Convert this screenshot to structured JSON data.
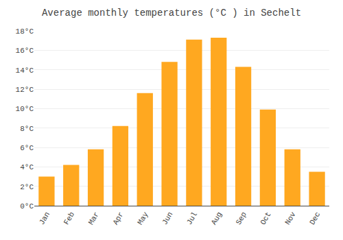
{
  "chart_data": {
    "type": "bar",
    "title": "Average monthly temperatures (°C ) in Sechelt",
    "categories": [
      "Jan",
      "Feb",
      "Mar",
      "Apr",
      "May",
      "Jun",
      "Jul",
      "Aug",
      "Sep",
      "Oct",
      "Nov",
      "Dec"
    ],
    "values": [
      3.0,
      4.2,
      5.8,
      8.2,
      11.6,
      14.8,
      17.1,
      17.3,
      14.3,
      9.9,
      5.8,
      3.5
    ],
    "color": "#FFA820",
    "ylim": [
      0,
      18
    ],
    "yticks": [
      {
        "value": 0,
        "label": "0°C"
      },
      {
        "value": 2,
        "label": "2°C"
      },
      {
        "value": 4,
        "label": "4°C"
      },
      {
        "value": 6,
        "label": "6°C"
      },
      {
        "value": 8,
        "label": "8°C"
      },
      {
        "value": 10,
        "label": "10°C"
      },
      {
        "value": 12,
        "label": "12°C"
      },
      {
        "value": 14,
        "label": "14°C"
      },
      {
        "value": 16,
        "label": "16°C"
      },
      {
        "value": 18,
        "label": "18°C"
      }
    ],
    "grid": true
  }
}
